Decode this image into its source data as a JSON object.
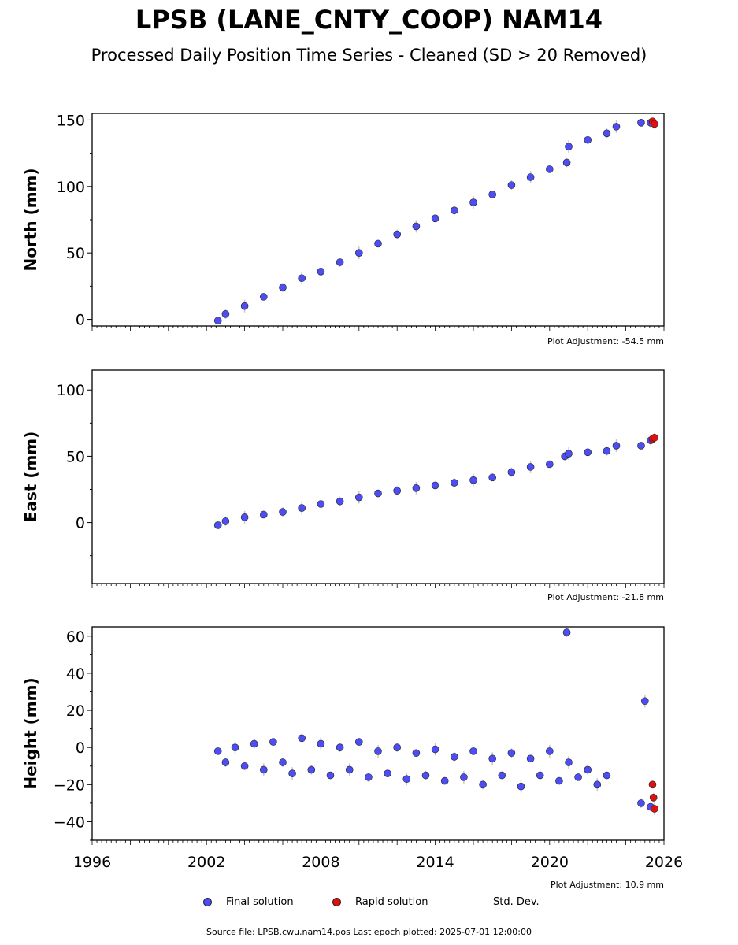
{
  "title": "LPSB (LANE_CNTY_COOP) NAM14",
  "subtitle": "Processed Daily Position Time Series - Cleaned (SD > 20 Removed)",
  "legend": {
    "final": "Final solution",
    "rapid": "Rapid solution",
    "std": "Std. Dev."
  },
  "colors": {
    "final": "#4d4df5",
    "rapid": "#e01010",
    "std": "#c8c8c8"
  },
  "source": "Source file: LPSB.cwu.nam14.pos  Last epoch plotted: 2025-07-01 12:00:00",
  "chart_data": [
    {
      "type": "scatter",
      "ylabel": "North (mm)",
      "adjustment": "Plot Adjustment: -54.5 mm",
      "xlim": [
        1996,
        2026
      ],
      "ylim": [
        -5,
        155
      ],
      "yticks": [
        0,
        50,
        100,
        150
      ],
      "xtick_labels": [],
      "series": [
        {
          "name": "Final solution",
          "x": [
            2002.6,
            2003.0,
            2004.0,
            2005.0,
            2006.0,
            2007.0,
            2008.0,
            2009.0,
            2010.0,
            2011.0,
            2012.0,
            2013.0,
            2014.0,
            2015.0,
            2016.0,
            2017.0,
            2018.0,
            2019.0,
            2020.0,
            2020.9,
            2021.0,
            2022.0,
            2023.0,
            2023.5,
            2024.8,
            2025.3
          ],
          "y": [
            -1,
            4,
            10,
            17,
            24,
            31,
            36,
            43,
            50,
            57,
            64,
            70,
            76,
            82,
            88,
            94,
            101,
            107,
            113,
            118,
            130,
            135,
            140,
            145,
            148,
            148
          ]
        },
        {
          "name": "Rapid solution",
          "x": [
            2025.4,
            2025.5
          ],
          "y": [
            149,
            147
          ]
        }
      ]
    },
    {
      "type": "scatter",
      "ylabel": "East (mm)",
      "adjustment": "Plot Adjustment: -21.8 mm",
      "xlim": [
        1996,
        2026
      ],
      "ylim": [
        -46,
        115
      ],
      "yticks": [
        0,
        50,
        100
      ],
      "xtick_labels": [],
      "series": [
        {
          "name": "Final solution",
          "x": [
            2002.6,
            2003.0,
            2004.0,
            2005.0,
            2006.0,
            2007.0,
            2008.0,
            2009.0,
            2010.0,
            2011.0,
            2012.0,
            2013.0,
            2014.0,
            2015.0,
            2016.0,
            2017.0,
            2018.0,
            2019.0,
            2020.0,
            2020.8,
            2021.0,
            2022.0,
            2023.0,
            2023.5,
            2024.8,
            2025.3
          ],
          "y": [
            -2,
            1,
            4,
            6,
            8,
            11,
            14,
            16,
            19,
            22,
            24,
            26,
            28,
            30,
            32,
            34,
            38,
            42,
            44,
            50,
            52,
            53,
            54,
            58,
            58,
            62
          ]
        },
        {
          "name": "Rapid solution",
          "x": [
            2025.4,
            2025.5
          ],
          "y": [
            63,
            64
          ]
        }
      ]
    },
    {
      "type": "scatter",
      "ylabel": "Height (mm)",
      "adjustment": "Plot Adjustment: 10.9 mm",
      "xlim": [
        1996,
        2026
      ],
      "ylim": [
        -50,
        65
      ],
      "yticks": [
        -40,
        -20,
        0,
        20,
        40,
        60
      ],
      "xtick_labels": [
        "1996",
        "2002",
        "2008",
        "2014",
        "2020",
        "2026"
      ],
      "series": [
        {
          "name": "Final solution",
          "x": [
            2002.6,
            2003.0,
            2003.5,
            2004.0,
            2004.5,
            2005.0,
            2005.5,
            2006.0,
            2006.5,
            2007.0,
            2007.5,
            2008.0,
            2008.5,
            2009.0,
            2009.5,
            2010.0,
            2010.5,
            2011.0,
            2011.5,
            2012.0,
            2012.5,
            2013.0,
            2013.5,
            2014.0,
            2014.5,
            2015.0,
            2015.5,
            2016.0,
            2016.5,
            2017.0,
            2017.5,
            2018.0,
            2018.5,
            2019.0,
            2019.5,
            2020.0,
            2020.5,
            2020.9,
            2021.0,
            2021.5,
            2022.0,
            2022.5,
            2023.0,
            2024.8,
            2025.0,
            2025.3
          ],
          "y": [
            -2,
            -8,
            0,
            -10,
            2,
            -12,
            3,
            -8,
            -14,
            5,
            -12,
            2,
            -15,
            0,
            -12,
            3,
            -16,
            -2,
            -14,
            0,
            -17,
            -3,
            -15,
            -1,
            -18,
            -5,
            -16,
            -2,
            -20,
            -6,
            -15,
            -3,
            -21,
            -6,
            -15,
            -2,
            -18,
            62,
            -8,
            -16,
            -12,
            -20,
            -15,
            -30,
            25,
            -32
          ]
        },
        {
          "name": "Rapid solution",
          "x": [
            2025.4,
            2025.45,
            2025.5
          ],
          "y": [
            -20,
            -27,
            -33
          ]
        }
      ]
    }
  ]
}
